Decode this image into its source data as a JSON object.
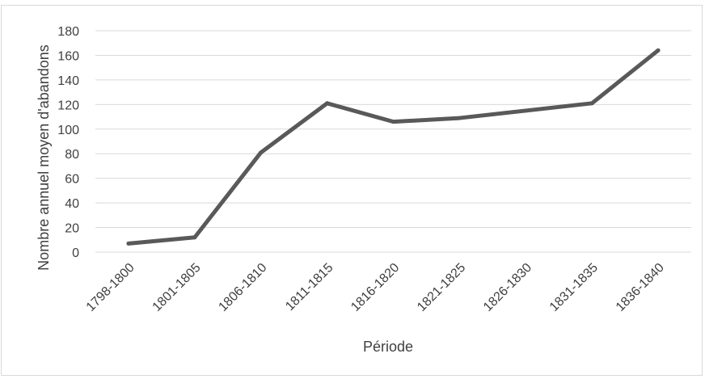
{
  "chart_data": {
    "type": "line",
    "title": "",
    "xlabel": "Période",
    "ylabel": "Nombre annuel moyen d'abandons",
    "categories": [
      "1798-1800",
      "1801-1805",
      "1806-1810",
      "1811-1815",
      "1816-1820",
      "1821-1825",
      "1826-1830",
      "1831-1835",
      "1836-1840"
    ],
    "series": [
      {
        "values": [
          7,
          12,
          81,
          121,
          106,
          109,
          115,
          121,
          164
        ]
      }
    ],
    "ylim": [
      0,
      180
    ],
    "yticks": [
      0,
      20,
      40,
      60,
      80,
      100,
      120,
      140,
      160,
      180
    ],
    "grid": true,
    "legend": "none",
    "colors": {
      "line": "#595959",
      "grid": "#d9d9d9",
      "text": "#404040"
    }
  }
}
